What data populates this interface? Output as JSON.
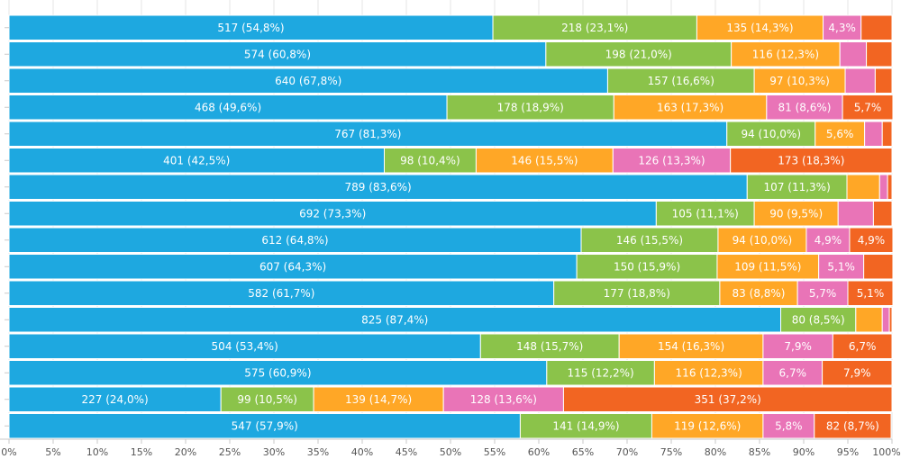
{
  "chart_data": {
    "type": "bar",
    "orientation": "horizontal",
    "stacked": "percent",
    "title": "",
    "xlabel": "",
    "ylabel": "",
    "xlim": [
      0,
      100
    ],
    "x_ticks": [
      "0%",
      "5%",
      "10%",
      "15%",
      "20%",
      "25%",
      "30%",
      "35%",
      "40%",
      "45%",
      "50%",
      "55%",
      "60%",
      "65%",
      "70%",
      "75%",
      "80%",
      "85%",
      "90%",
      "95%",
      "100%"
    ],
    "grid": true,
    "legend": "none",
    "colors": [
      "#1ea8e0",
      "#8bc34a",
      "#ffa726",
      "#e974b7",
      "#f26522"
    ],
    "rows": [
      {
        "segments": [
          {
            "pct": 54.8,
            "label": "517 (54,8%)"
          },
          {
            "pct": 23.1,
            "label": "218 (23,1%)"
          },
          {
            "pct": 14.3,
            "label": "135 (14,3%)"
          },
          {
            "pct": 4.3,
            "label": "4,3%"
          },
          {
            "pct": 3.5,
            "label": ""
          }
        ]
      },
      {
        "segments": [
          {
            "pct": 60.8,
            "label": "574 (60,8%)"
          },
          {
            "pct": 21.0,
            "label": "198 (21,0%)"
          },
          {
            "pct": 12.3,
            "label": "116 (12,3%)"
          },
          {
            "pct": 3.0,
            "label": ""
          },
          {
            "pct": 2.9,
            "label": ""
          }
        ]
      },
      {
        "segments": [
          {
            "pct": 67.8,
            "label": "640 (67,8%)"
          },
          {
            "pct": 16.6,
            "label": "157 (16,6%)"
          },
          {
            "pct": 10.3,
            "label": "97 (10,3%)"
          },
          {
            "pct": 3.4,
            "label": ""
          },
          {
            "pct": 1.9,
            "label": ""
          }
        ]
      },
      {
        "segments": [
          {
            "pct": 49.6,
            "label": "468 (49,6%)"
          },
          {
            "pct": 18.9,
            "label": "178 (18,9%)"
          },
          {
            "pct": 17.3,
            "label": "163 (17,3%)"
          },
          {
            "pct": 8.6,
            "label": "81 (8,6%)"
          },
          {
            "pct": 5.7,
            "label": "5,7%"
          }
        ]
      },
      {
        "segments": [
          {
            "pct": 81.3,
            "label": "767 (81,3%)"
          },
          {
            "pct": 10.0,
            "label": "94 (10,0%)"
          },
          {
            "pct": 5.6,
            "label": "5,6%"
          },
          {
            "pct": 2.0,
            "label": ""
          },
          {
            "pct": 1.1,
            "label": ""
          }
        ]
      },
      {
        "segments": [
          {
            "pct": 42.5,
            "label": "401 (42,5%)"
          },
          {
            "pct": 10.4,
            "label": "98 (10,4%)"
          },
          {
            "pct": 15.5,
            "label": "146 (15,5%)"
          },
          {
            "pct": 13.3,
            "label": "126 (13,3%)"
          },
          {
            "pct": 18.3,
            "label": "173 (18,3%)"
          }
        ]
      },
      {
        "segments": [
          {
            "pct": 83.6,
            "label": "789 (83,6%)"
          },
          {
            "pct": 11.3,
            "label": "107 (11,3%)"
          },
          {
            "pct": 3.7,
            "label": ""
          },
          {
            "pct": 0.9,
            "label": ""
          },
          {
            "pct": 0.5,
            "label": ""
          }
        ]
      },
      {
        "segments": [
          {
            "pct": 73.3,
            "label": "692 (73,3%)"
          },
          {
            "pct": 11.1,
            "label": "105 (11,1%)"
          },
          {
            "pct": 9.5,
            "label": "90 (9,5%)"
          },
          {
            "pct": 4.0,
            "label": ""
          },
          {
            "pct": 2.1,
            "label": ""
          }
        ]
      },
      {
        "segments": [
          {
            "pct": 64.8,
            "label": "612 (64,8%)"
          },
          {
            "pct": 15.5,
            "label": "146 (15,5%)"
          },
          {
            "pct": 10.0,
            "label": "94 (10,0%)"
          },
          {
            "pct": 4.9,
            "label": "4,9%"
          },
          {
            "pct": 4.9,
            "label": "4,9%"
          }
        ]
      },
      {
        "segments": [
          {
            "pct": 64.3,
            "label": "607 (64,3%)"
          },
          {
            "pct": 15.9,
            "label": "150 (15,9%)"
          },
          {
            "pct": 11.5,
            "label": "109 (11,5%)"
          },
          {
            "pct": 5.1,
            "label": "5,1%"
          },
          {
            "pct": 3.3,
            "label": ""
          }
        ]
      },
      {
        "segments": [
          {
            "pct": 61.7,
            "label": "582 (61,7%)"
          },
          {
            "pct": 18.8,
            "label": "177 (18,8%)"
          },
          {
            "pct": 8.8,
            "label": "83 (8,8%)"
          },
          {
            "pct": 5.7,
            "label": "5,7%"
          },
          {
            "pct": 5.1,
            "label": "5,1%"
          }
        ]
      },
      {
        "segments": [
          {
            "pct": 87.4,
            "label": "825 (87,4%)"
          },
          {
            "pct": 8.5,
            "label": "80 (8,5%)"
          },
          {
            "pct": 3.0,
            "label": ""
          },
          {
            "pct": 0.8,
            "label": ""
          },
          {
            "pct": 0.3,
            "label": ""
          }
        ]
      },
      {
        "segments": [
          {
            "pct": 53.4,
            "label": "504 (53,4%)"
          },
          {
            "pct": 15.7,
            "label": "148 (15,7%)"
          },
          {
            "pct": 16.3,
            "label": "154 (16,3%)"
          },
          {
            "pct": 7.9,
            "label": "7,9%"
          },
          {
            "pct": 6.7,
            "label": "6,7%"
          }
        ]
      },
      {
        "segments": [
          {
            "pct": 60.9,
            "label": "575 (60,9%)"
          },
          {
            "pct": 12.2,
            "label": "115 (12,2%)"
          },
          {
            "pct": 12.3,
            "label": "116 (12,3%)"
          },
          {
            "pct": 6.7,
            "label": "6,7%"
          },
          {
            "pct": 7.9,
            "label": "7,9%"
          }
        ]
      },
      {
        "segments": [
          {
            "pct": 24.0,
            "label": "227 (24,0%)"
          },
          {
            "pct": 10.5,
            "label": "99 (10,5%)"
          },
          {
            "pct": 14.7,
            "label": "139 (14,7%)"
          },
          {
            "pct": 13.6,
            "label": "128 (13,6%)"
          },
          {
            "pct": 37.2,
            "label": "351 (37,2%)"
          }
        ]
      },
      {
        "segments": [
          {
            "pct": 57.9,
            "label": "547 (57,9%)"
          },
          {
            "pct": 14.9,
            "label": "141 (14,9%)"
          },
          {
            "pct": 12.6,
            "label": "119 (12,6%)"
          },
          {
            "pct": 5.8,
            "label": "5,8%"
          },
          {
            "pct": 8.7,
            "label": "82 (8,7%)"
          }
        ]
      }
    ]
  }
}
